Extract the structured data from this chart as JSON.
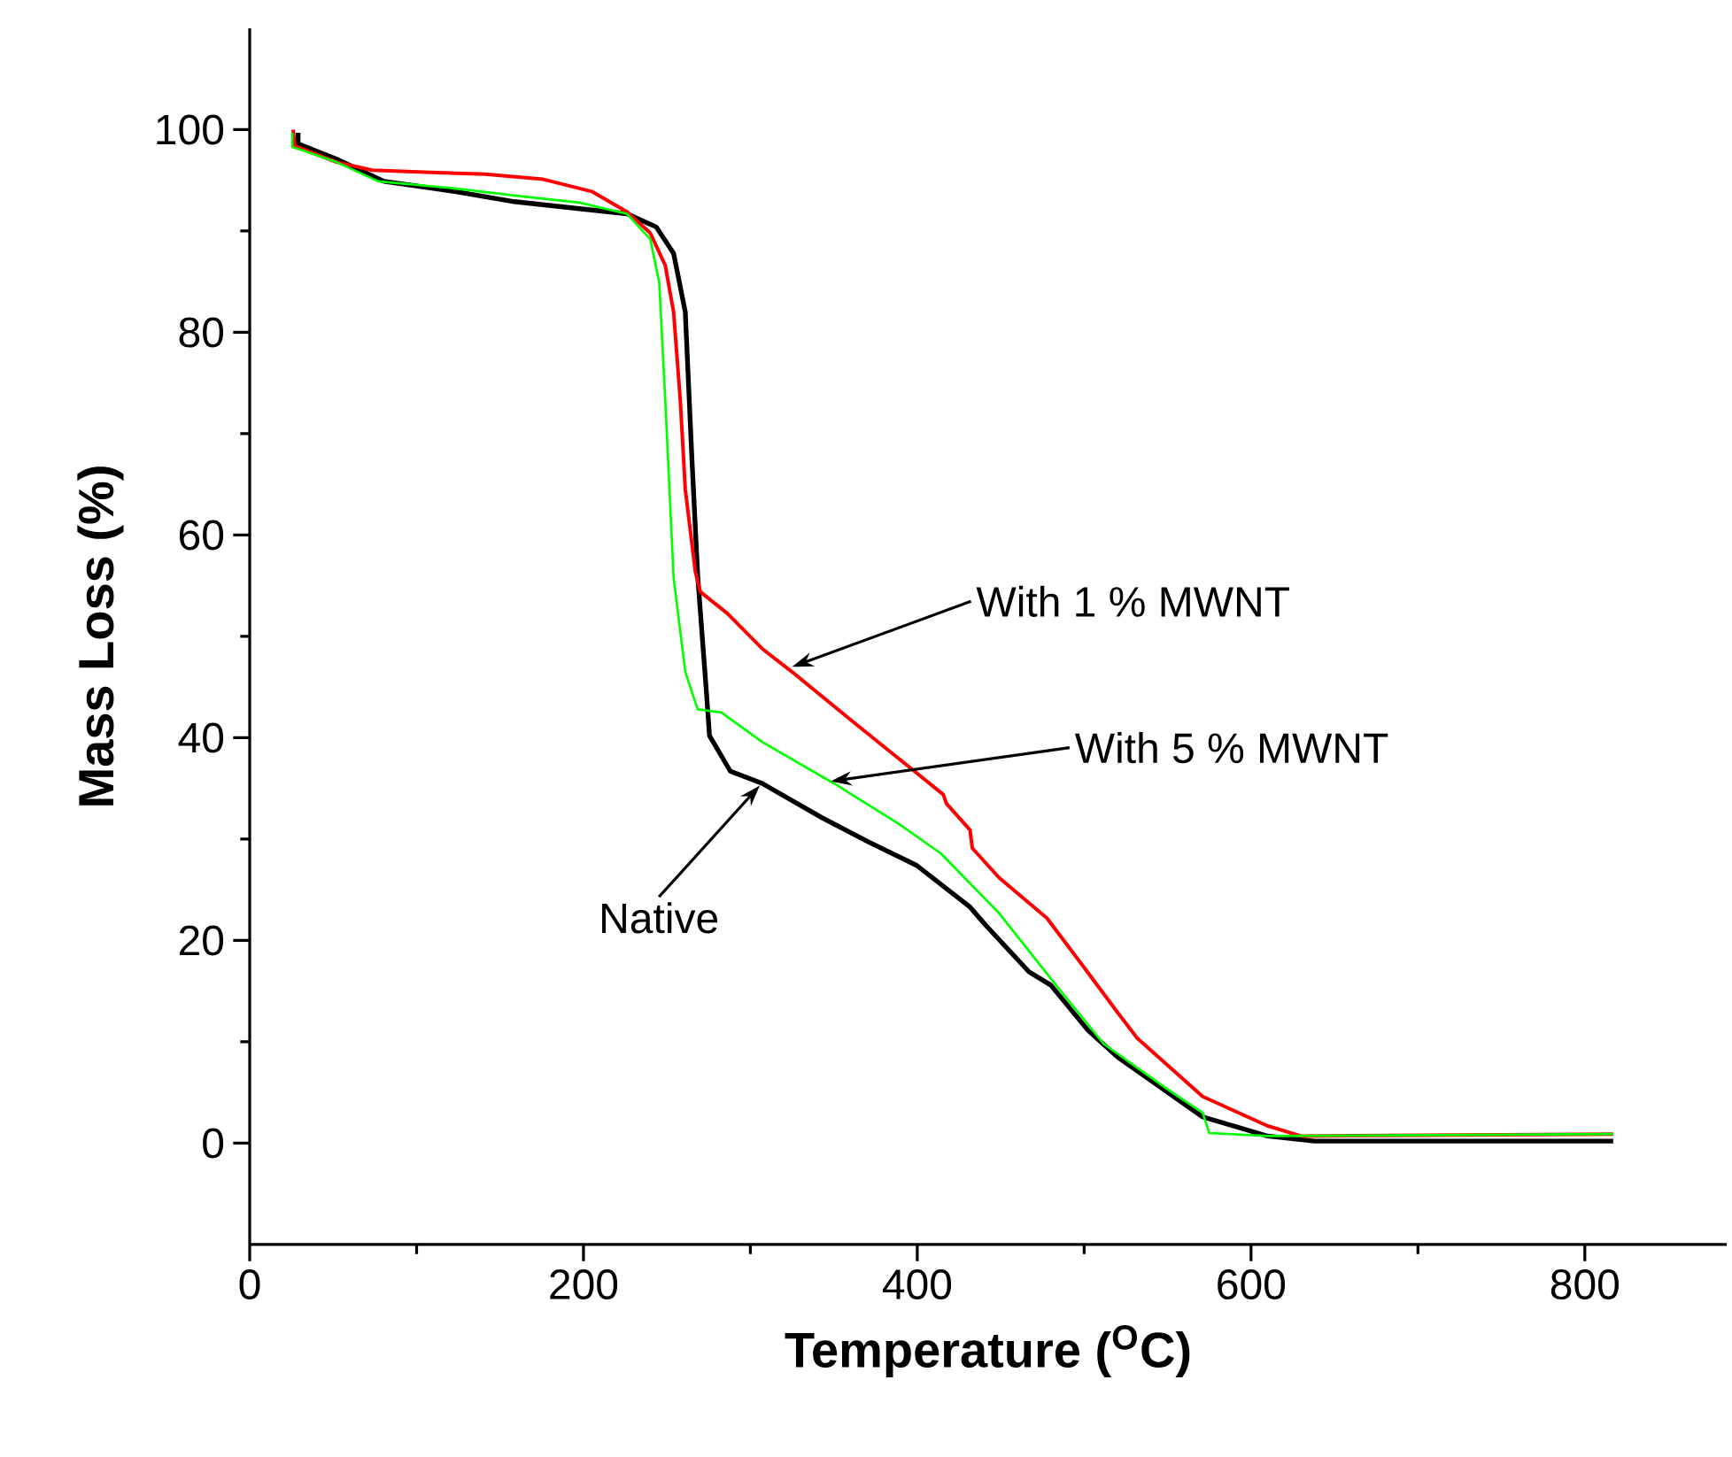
{
  "chart_data": {
    "type": "line",
    "xlabel": "Temperature ($^{O}$C)",
    "ylabel": "Mass Loss (%)",
    "xlim": [
      0,
      885
    ],
    "ylim": [
      -10,
      110
    ],
    "xticks": [
      0,
      200,
      400,
      600,
      800
    ],
    "yticks": [
      0,
      20,
      40,
      60,
      80,
      100
    ],
    "series": [
      {
        "color": "#000000",
        "x": [
          29,
          29,
          52,
          80.5,
          123,
          158.5,
          197.5,
          226,
          243.6,
          254,
          261,
          265,
          268.5,
          273.8,
          275.5,
          288,
          307,
          343,
          371,
          399.7,
          431.6,
          441,
          467,
          480,
          502.5,
          520,
          571,
          610,
          638,
          817
        ],
        "values": [
          99.7,
          98.6,
          97.1,
          94.9,
          93.9,
          92.9,
          92.2,
          91.7,
          90.4,
          87.8,
          82,
          67.4,
          55.8,
          44.2,
          40.2,
          36.7,
          35.5,
          32.1,
          29.7,
          27.4,
          23.3,
          21.5,
          16.9,
          15.6,
          11.1,
          8.5,
          2.6,
          0.7,
          0.2,
          0.2
        ]
      },
      {
        "color": "#ff0000",
        "x": [
          26,
          27,
          52,
          73.4,
          105,
          141,
          176,
          205,
          226,
          240,
          249,
          254,
          258,
          261,
          267,
          270,
          286,
          307,
          325,
          360.6,
          396,
          415.6,
          417.5,
          431.6,
          433,
          449,
          477.7,
          496,
          520,
          531.6,
          571,
          610,
          630,
          817
        ],
        "values": [
          100,
          98.4,
          96.8,
          96.0,
          95.8,
          95.6,
          95.1,
          93.9,
          91.9,
          89.8,
          86.6,
          82,
          73.3,
          64.5,
          56.4,
          54.4,
          52.3,
          48.8,
          46.5,
          41.7,
          37,
          34.4,
          33.5,
          30.9,
          29.1,
          26.2,
          22.2,
          18.2,
          12.9,
          10.4,
          4.6,
          1.7,
          0.7,
          0.9
        ]
      },
      {
        "color": "#00ff00",
        "x": [
          25.5,
          25.5,
          52,
          77,
          123,
          158.5,
          197.5,
          226,
          240,
          245.4,
          249,
          254,
          261,
          268.4,
          282.6,
          307,
          350,
          389,
          414,
          449,
          485,
          511.7,
          551,
          571,
          575,
          610,
          817
        ],
        "values": [
          99.7,
          98.3,
          96.8,
          94.9,
          94.2,
          93.5,
          92.8,
          91.7,
          89.2,
          84.9,
          73.3,
          55.8,
          46.5,
          42.8,
          42.5,
          39.6,
          35.5,
          31.5,
          28.6,
          22.7,
          15.2,
          9.8,
          5.2,
          3,
          1.0,
          0.7,
          0.9
        ]
      }
    ],
    "annotations": [
      {
        "text": "With 1 % MWNT",
        "x": 325,
        "y": 47
      },
      {
        "text": "With 5 % MWNT",
        "x": 348,
        "y": 35.7
      },
      {
        "text": "Native",
        "x": 305.7,
        "y": 35.3
      }
    ]
  }
}
